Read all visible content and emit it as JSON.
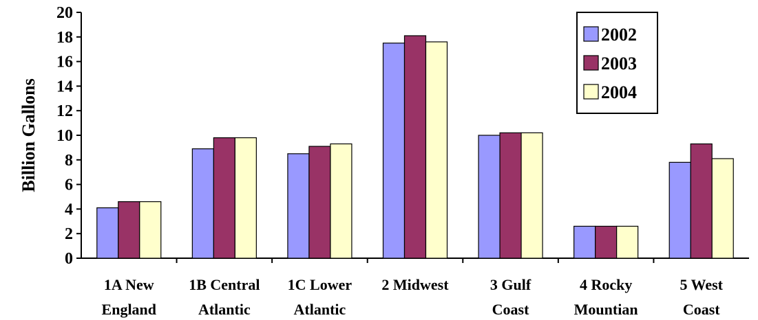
{
  "chart_data": {
    "type": "bar",
    "categories": [
      [
        "1A New",
        "England"
      ],
      [
        "1B Central",
        "Atlantic"
      ],
      [
        "1C Lower",
        "Atlantic"
      ],
      [
        "2 Midwest"
      ],
      [
        "3 Gulf",
        "Coast"
      ],
      [
        "4 Rocky",
        "Mountian"
      ],
      [
        "5 West",
        "Coast"
      ]
    ],
    "series": [
      {
        "name": "2002",
        "color": "#9999ff",
        "values": [
          4.1,
          8.9,
          8.5,
          17.5,
          10.0,
          2.6,
          7.8
        ]
      },
      {
        "name": "2003",
        "color": "#993366",
        "values": [
          4.6,
          9.8,
          9.1,
          18.1,
          10.2,
          2.6,
          9.3
        ]
      },
      {
        "name": "2004",
        "color": "#ffffcc",
        "values": [
          4.6,
          9.8,
          9.3,
          17.6,
          10.2,
          2.6,
          8.1
        ]
      }
    ],
    "ylabel": "Billion Gallons",
    "xlabel": "",
    "title": "",
    "ylim": [
      0,
      20
    ],
    "yticks": [
      "0",
      "2",
      "4",
      "6",
      "8",
      "10",
      "12",
      "14",
      "16",
      "18",
      "20"
    ],
    "legend_position": "top-right",
    "grid": false
  }
}
